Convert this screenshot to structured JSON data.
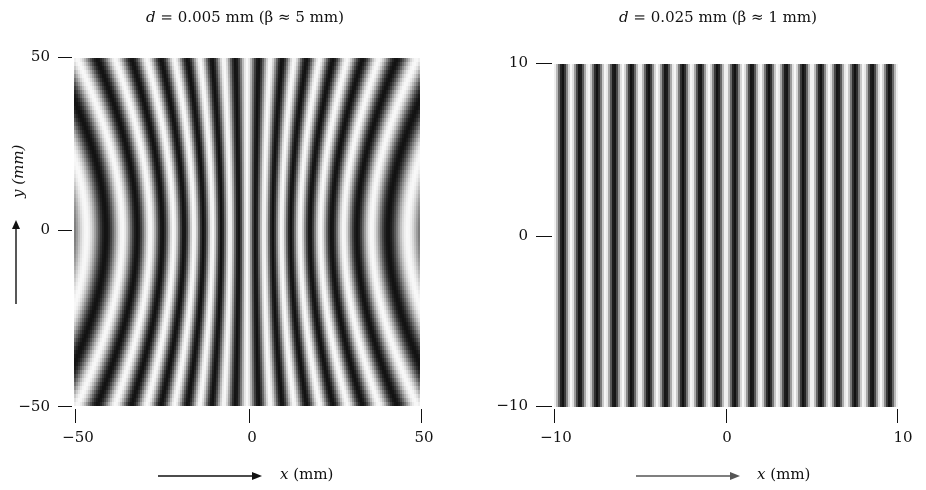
{
  "figure": {
    "panels": [
      {
        "title_var": "d",
        "title_rest": " = 0.005 mm (β ≈ 5 mm)",
        "x_ticks": [
          "−50",
          "0",
          "50"
        ],
        "y_ticks": [
          "50",
          "0",
          "−50"
        ],
        "xlabel_var": "x",
        "xlabel_unit": " (mm)",
        "ylabel_var": "y",
        "ylabel_unit": " (mm)"
      },
      {
        "title_var": "d",
        "title_rest": " = 0.025 mm (β ≈ 1 mm)",
        "x_ticks": [
          "−10",
          "0",
          "10"
        ],
        "y_ticks": [
          "10",
          "0",
          "−10"
        ],
        "xlabel_var": "x",
        "xlabel_unit": " (mm)"
      }
    ]
  },
  "chart_data": [
    {
      "type": "heatmap",
      "title": "d = 0.005 mm (β ≈ 5 mm)",
      "xlabel": "x (mm)",
      "ylabel": "y (mm)",
      "xlim": [
        -50,
        50
      ],
      "ylim": [
        -50,
        50
      ],
      "colormap": "grayscale",
      "pattern": "hyperbolic interference fringes, vertex spacing ≈ 5 mm, curving outward with |y|",
      "fringe_spacing_mm": 5
    },
    {
      "type": "heatmap",
      "title": "d = 0.025 mm (β ≈ 1 mm)",
      "xlabel": "x (mm)",
      "xlim": [
        -10,
        10
      ],
      "ylim": [
        -10,
        10
      ],
      "colormap": "grayscale",
      "pattern": "nearly straight vertical interference fringes",
      "fringe_spacing_mm": 1
    }
  ]
}
